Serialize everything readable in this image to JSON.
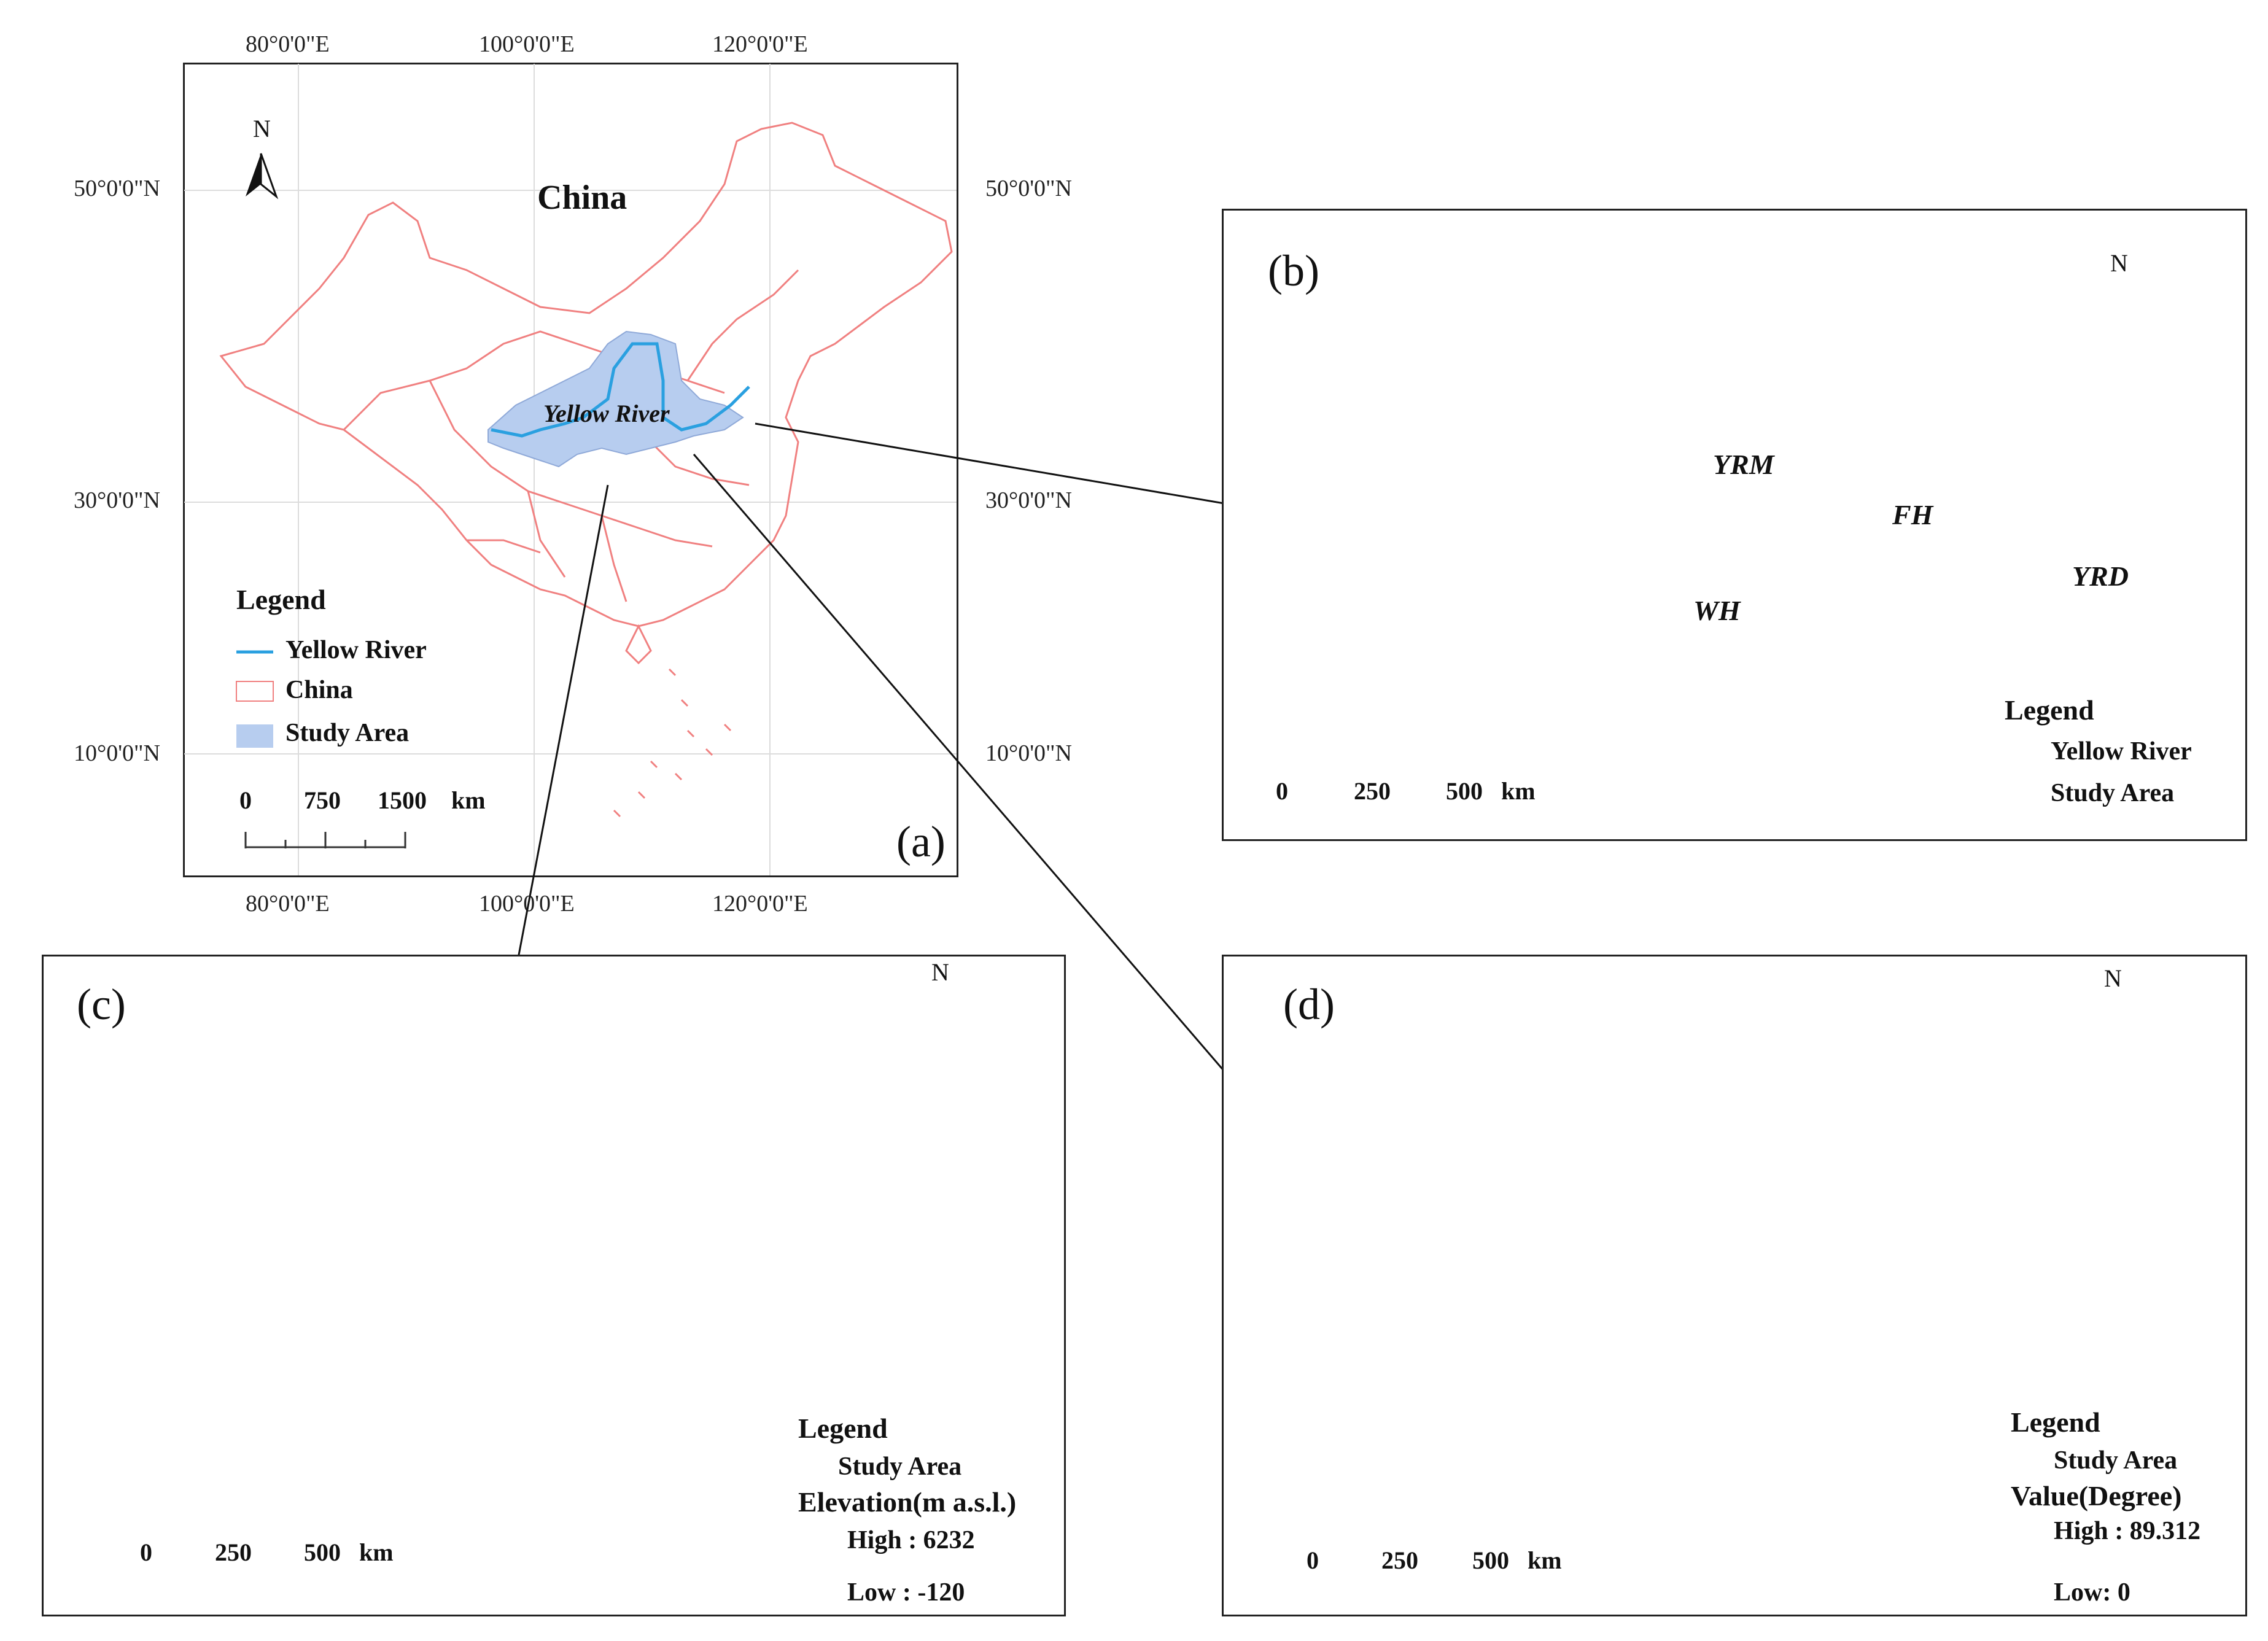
{
  "panel_a": {
    "label": "(a)",
    "top_coords": [
      "80°0'0\"E",
      "100°0'0\"E",
      "120°0'0\"E"
    ],
    "bottom_coords": [
      "80°0'0\"E",
      "100°0'0\"E",
      "120°0'0\"E"
    ],
    "left_coords": [
      "50°0'0\"N",
      "30°0'0\"N",
      "10°0'0\"N"
    ],
    "right_coords": [
      "50°0'0\"N",
      "30°0'0\"N",
      "10°0'0\"N"
    ],
    "country_label": "China",
    "river_label": "Yellow River",
    "north": "N",
    "legend": {
      "title": "Legend",
      "items": [
        "Yellow River",
        "China",
        "Study Area"
      ]
    },
    "scale": [
      "0",
      "750",
      "1500",
      "km"
    ]
  },
  "panel_b": {
    "label": "(b)",
    "north": "N",
    "regions": [
      "YRM",
      "FH",
      "WH",
      "YRD"
    ],
    "legend": {
      "title": "Legend",
      "items": [
        "Yellow River",
        "Study Area"
      ]
    },
    "scale": [
      "0",
      "250",
      "500",
      "km"
    ]
  },
  "panel_c": {
    "label": "(c)",
    "north": "N",
    "legend": {
      "title": "Legend",
      "study_area": "Study Area",
      "value_title": "Elevation(m a.s.l.)",
      "high": "High : 6232",
      "low": "Low : -120"
    },
    "scale": [
      "0",
      "250",
      "500",
      "km"
    ]
  },
  "panel_d": {
    "label": "(d)",
    "north": "N",
    "legend": {
      "title": "Legend",
      "study_area": "Study Area",
      "value_title": "Value(Degree)",
      "high": "High : 89.312",
      "low": "Low: 0"
    },
    "scale": [
      "0",
      "250",
      "500",
      "km"
    ]
  },
  "colors": {
    "river": "#2aa0e0",
    "china_border": "#f08080",
    "study_area_fill": "#b7cdef",
    "study_area_border": "#b0262a",
    "elev_high": "#2f8f8a",
    "elev_mid": "#f2e6a6",
    "elev_low": "#a8661c",
    "slope_high": "#e06a4a",
    "slope_low": "#4466d8"
  }
}
